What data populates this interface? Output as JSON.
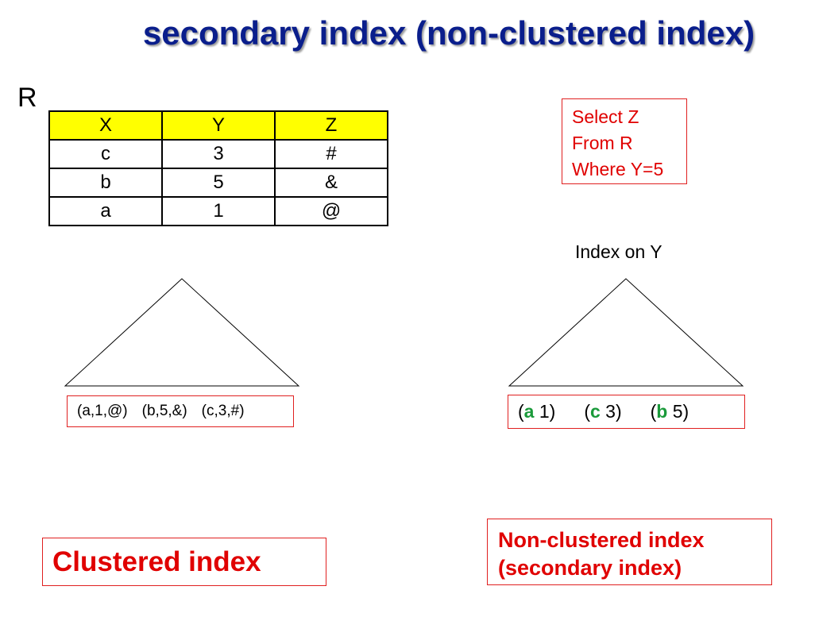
{
  "title": "secondary index (non-clustered index)",
  "relation": {
    "name": "R",
    "columns": [
      "X",
      "Y",
      "Z"
    ],
    "rows": [
      [
        "c",
        "3",
        "#"
      ],
      [
        "b",
        "5",
        "&"
      ],
      [
        "a",
        "1",
        "@"
      ]
    ]
  },
  "query": {
    "lines": [
      "Select Z",
      "From R",
      "Where Y=5"
    ]
  },
  "secondary_index_label": "Index on Y",
  "clustered_leaf": {
    "entries": [
      "(a,1,@)",
      "(b,5,&)",
      "(c,3,#)"
    ]
  },
  "nonclustered_leaf": {
    "entries": [
      {
        "open": "(",
        "key": "a",
        "value": " 1)"
      },
      {
        "open": "(",
        "key": "c",
        "value": " 3)"
      },
      {
        "open": "(",
        "key": "b",
        "value": " 5)"
      }
    ]
  },
  "clustered_label": "Clustered index",
  "nonclustered_label": [
    "Non-clustered index",
    "(secondary index)"
  ],
  "colors": {
    "title": "#0a1e8c",
    "header_fill": "#ffff00",
    "accent_red": "#e00000",
    "key_green": "#1a9a3a"
  }
}
